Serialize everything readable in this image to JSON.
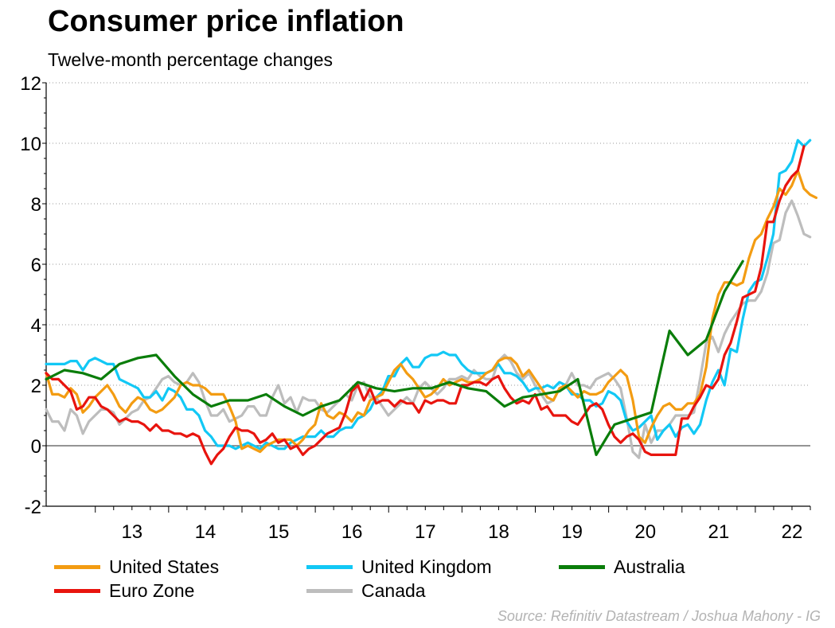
{
  "header": {
    "title": "Consumer price inflation",
    "subtitle": "Twelve-month percentage changes"
  },
  "source": "Source: Refinitiv Datastream / Joshua Mahony - IG",
  "chart_data": {
    "type": "line",
    "title": "Consumer price inflation",
    "subtitle": "Twelve-month percentage changes",
    "xlabel": "",
    "ylabel": "",
    "x_start": 2012.33,
    "x_step_months": 1,
    "xlim": [
      2012.33,
      2022.75
    ],
    "ylim": [
      -2,
      12
    ],
    "y_ticks": [
      -2,
      0,
      2,
      4,
      6,
      8,
      10,
      12
    ],
    "x_tick_labels": [
      "13",
      "14",
      "15",
      "16",
      "17",
      "18",
      "19",
      "20",
      "21",
      "22"
    ],
    "x_tick_positions": [
      2013,
      2014,
      2015,
      2016,
      2017,
      2018,
      2019,
      2020,
      2021,
      2022
    ],
    "grid": "horizontal-dotted",
    "legend_placement": "bottom",
    "series": [
      {
        "name": "United States",
        "color": "#f39c12",
        "values": [
          2.4,
          1.7,
          1.7,
          1.6,
          1.9,
          1.7,
          1.1,
          1.3,
          1.6,
          1.8,
          2.0,
          1.7,
          1.3,
          1.1,
          1.4,
          1.6,
          1.5,
          1.2,
          1.1,
          1.2,
          1.4,
          1.6,
          2.0,
          2.1,
          2.0,
          2.0,
          1.9,
          1.7,
          1.7,
          1.7,
          1.3,
          0.8,
          -0.1,
          0.0,
          -0.1,
          -0.2,
          0.0,
          0.1,
          0.2,
          0.2,
          0.2,
          0.0,
          0.2,
          0.5,
          0.7,
          1.4,
          1.0,
          0.9,
          1.1,
          1.0,
          0.8,
          1.1,
          1.0,
          1.5,
          1.6,
          1.7,
          2.1,
          2.5,
          2.7,
          2.4,
          2.2,
          1.9,
          1.6,
          1.7,
          1.9,
          2.2,
          2.0,
          2.1,
          2.2,
          2.1,
          2.1,
          2.2,
          2.4,
          2.5,
          2.8,
          2.9,
          2.9,
          2.7,
          2.3,
          2.5,
          2.2,
          1.9,
          1.6,
          1.5,
          1.9,
          2.0,
          1.8,
          1.6,
          1.8,
          1.7,
          1.7,
          1.8,
          2.1,
          2.3,
          2.5,
          2.3,
          1.5,
          0.3,
          0.1,
          0.6,
          1.0,
          1.3,
          1.4,
          1.2,
          1.2,
          1.4,
          1.4,
          1.7,
          2.6,
          4.2,
          5.0,
          5.4,
          5.4,
          5.3,
          5.4,
          6.2,
          6.8,
          7.0,
          7.5,
          7.9,
          8.5,
          8.3,
          8.6,
          9.1,
          8.5,
          8.3,
          8.2
        ]
      },
      {
        "name": "United Kingdom",
        "color": "#12c8f5",
        "values": [
          2.7,
          2.7,
          2.7,
          2.7,
          2.8,
          2.8,
          2.5,
          2.8,
          2.9,
          2.8,
          2.7,
          2.7,
          2.2,
          2.1,
          2.0,
          1.9,
          1.6,
          1.6,
          1.8,
          1.5,
          1.9,
          1.8,
          1.6,
          1.2,
          1.2,
          1.0,
          0.5,
          0.3,
          0.0,
          0.0,
          0.0,
          -0.1,
          0.0,
          0.1,
          0.0,
          -0.1,
          0.1,
          0.0,
          -0.1,
          -0.1,
          0.1,
          0.2,
          0.3,
          0.3,
          0.3,
          0.5,
          0.3,
          0.3,
          0.5,
          0.6,
          0.6,
          0.9,
          1.0,
          1.2,
          1.6,
          1.8,
          2.3,
          2.3,
          2.7,
          2.9,
          2.6,
          2.6,
          2.9,
          3.0,
          3.0,
          3.1,
          3.0,
          3.0,
          2.7,
          2.5,
          2.4,
          2.4,
          2.4,
          2.5,
          2.7,
          2.4,
          2.4,
          2.3,
          2.1,
          1.8,
          1.9,
          1.9,
          2.0,
          1.9,
          2.1,
          2.0,
          1.7,
          1.7,
          1.5,
          1.5,
          1.3,
          1.4,
          1.8,
          1.7,
          1.5,
          0.8,
          0.5,
          0.6,
          0.8,
          1.0,
          0.2,
          0.5,
          0.7,
          0.3,
          0.6,
          0.7,
          0.4,
          0.7,
          1.5,
          2.1,
          2.5,
          2.0,
          3.2,
          3.1,
          4.2,
          5.1,
          5.4,
          5.5,
          6.2,
          7.0,
          9.0,
          9.1,
          9.4,
          10.1,
          9.9,
          10.1
        ]
      },
      {
        "name": "Australia",
        "color": "#0a7d0a",
        "x_step_months": 3,
        "values": [
          2.2,
          2.5,
          2.4,
          2.2,
          2.7,
          2.9,
          3.0,
          2.3,
          1.7,
          1.3,
          1.5,
          1.5,
          1.7,
          1.3,
          1.0,
          1.3,
          1.5,
          2.1,
          1.9,
          1.8,
          1.9,
          1.9,
          2.1,
          1.9,
          1.8,
          1.3,
          1.6,
          1.7,
          1.8,
          2.2,
          -0.3,
          0.7,
          0.9,
          1.1,
          3.8,
          3.0,
          3.5,
          5.1,
          6.1
        ]
      },
      {
        "name": "Euro Zone",
        "color": "#e8140e",
        "values": [
          2.4,
          2.2,
          2.2,
          2.0,
          1.8,
          1.2,
          1.3,
          1.6,
          1.6,
          1.3,
          1.2,
          1.0,
          0.8,
          0.9,
          0.8,
          0.8,
          0.7,
          0.5,
          0.7,
          0.5,
          0.5,
          0.4,
          0.4,
          0.3,
          0.4,
          0.3,
          -0.2,
          -0.6,
          -0.3,
          -0.1,
          0.3,
          0.6,
          0.5,
          0.5,
          0.4,
          0.1,
          0.2,
          0.4,
          0.1,
          0.2,
          -0.1,
          0.0,
          -0.3,
          -0.1,
          0.0,
          0.2,
          0.4,
          0.5,
          0.6,
          1.1,
          1.8,
          2.0,
          1.5,
          1.9,
          1.4,
          1.5,
          1.5,
          1.3,
          1.5,
          1.4,
          1.4,
          1.1,
          1.5,
          1.4,
          1.5,
          1.5,
          1.4,
          1.4,
          2.0,
          2.0,
          2.1,
          2.1,
          2.0,
          2.2,
          2.3,
          1.9,
          1.6,
          1.4,
          1.5,
          1.4,
          1.7,
          1.2,
          1.3,
          1.0,
          1.0,
          1.0,
          0.8,
          0.7,
          1.0,
          1.3,
          1.4,
          1.2,
          0.7,
          0.3,
          0.1,
          0.3,
          0.4,
          0.2,
          -0.2,
          -0.3,
          -0.3,
          -0.3,
          -0.3,
          -0.3,
          0.9,
          0.9,
          1.3,
          1.6,
          2.0,
          1.9,
          2.2,
          3.0,
          3.4,
          4.1,
          4.9,
          5.0,
          5.1,
          5.9,
          7.4,
          7.4,
          8.1,
          8.6,
          8.9,
          9.1,
          9.9
        ]
      },
      {
        "name": "Canada",
        "color": "#bdbdbd",
        "values": [
          1.2,
          0.8,
          0.8,
          0.5,
          1.2,
          1.0,
          0.4,
          0.8,
          1.0,
          1.2,
          1.2,
          1.1,
          0.7,
          0.9,
          1.1,
          1.2,
          1.5,
          1.6,
          1.9,
          2.2,
          2.3,
          2.1,
          2.0,
          2.1,
          2.4,
          2.1,
          1.5,
          1.0,
          1.0,
          1.2,
          0.8,
          0.9,
          1.0,
          1.3,
          1.3,
          1.0,
          1.0,
          1.6,
          2.0,
          1.4,
          1.6,
          1.1,
          1.6,
          1.5,
          1.5,
          1.2,
          1.1,
          1.3,
          1.5,
          1.7,
          1.5,
          2.0,
          2.1,
          1.6,
          1.6,
          1.3,
          1.0,
          1.2,
          1.4,
          1.6,
          1.4,
          1.9,
          2.1,
          1.9,
          1.7,
          1.9,
          2.2,
          2.2,
          2.3,
          2.2,
          2.5,
          2.3,
          2.2,
          2.2,
          2.8,
          3.0,
          2.8,
          2.4,
          2.2,
          2.4,
          2.0,
          1.7,
          1.4,
          1.5,
          1.9,
          2.0,
          2.4,
          2.0,
          2.0,
          1.9,
          2.2,
          2.3,
          2.4,
          2.2,
          1.9,
          0.9,
          -0.2,
          -0.4,
          0.7,
          0.1,
          0.5,
          0.5,
          0.7,
          1.0,
          1.0,
          1.0,
          1.1,
          2.2,
          3.4,
          3.6,
          3.1,
          3.7,
          4.1,
          4.4,
          4.7,
          4.8,
          4.8,
          5.1,
          5.7,
          6.7,
          6.8,
          7.7,
          8.1,
          7.6,
          7.0,
          6.9
        ]
      }
    ]
  }
}
